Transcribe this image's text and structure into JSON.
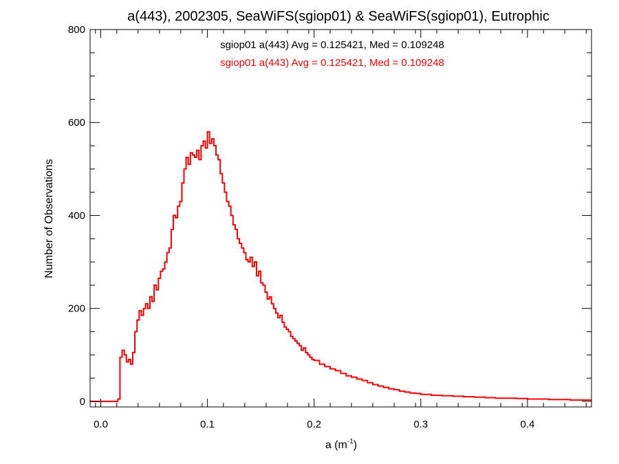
{
  "chart_data": {
    "type": "histogram",
    "title": "a(443), 2002305, SeaWiFS(sgiop01) & SeaWiFS(sgiop01), Eutrophic",
    "xlabel_main": "a (m",
    "xlabel_sup": "-1",
    "xlabel_close": ")",
    "ylabel": "Number of Observations",
    "xlim": [
      -0.01,
      0.46
    ],
    "ylim": [
      -12,
      800
    ],
    "xticks": [
      0.0,
      0.1,
      0.2,
      0.3,
      0.4
    ],
    "xtick_labels": [
      "0.0",
      "0.1",
      "0.2",
      "0.3",
      "0.4"
    ],
    "yticks": [
      0,
      200,
      400,
      600,
      800
    ],
    "ytick_labels": [
      "0",
      "200",
      "400",
      "600",
      "800"
    ],
    "colors": {
      "series1": "#000000",
      "series2": "#ff0000",
      "axes": "#000000"
    },
    "annotations": [
      {
        "text": "sgiop01 a(443) Avg = 0.125421, Med = 0.109248",
        "color": "#000000"
      },
      {
        "text": "sgiop01 a(443) Avg = 0.125421, Med = 0.109248",
        "color": "#ff0000"
      }
    ],
    "series": [
      {
        "name": "sgiop01",
        "color": "#000000",
        "x": [
          -0.01,
          0.016,
          0.018,
          0.02,
          0.022,
          0.024,
          0.026,
          0.028,
          0.03,
          0.032,
          0.034,
          0.036,
          0.038,
          0.04,
          0.042,
          0.044,
          0.046,
          0.048,
          0.05,
          0.052,
          0.054,
          0.056,
          0.058,
          0.06,
          0.062,
          0.064,
          0.066,
          0.068,
          0.07,
          0.072,
          0.074,
          0.076,
          0.078,
          0.08,
          0.082,
          0.084,
          0.086,
          0.088,
          0.09,
          0.092,
          0.094,
          0.096,
          0.098,
          0.1,
          0.102,
          0.104,
          0.106,
          0.108,
          0.11,
          0.112,
          0.114,
          0.116,
          0.118,
          0.12,
          0.122,
          0.124,
          0.126,
          0.128,
          0.13,
          0.132,
          0.134,
          0.136,
          0.138,
          0.14,
          0.142,
          0.144,
          0.146,
          0.148,
          0.15,
          0.152,
          0.154,
          0.156,
          0.158,
          0.16,
          0.162,
          0.164,
          0.166,
          0.168,
          0.17,
          0.172,
          0.174,
          0.176,
          0.178,
          0.18,
          0.182,
          0.184,
          0.186,
          0.188,
          0.19,
          0.192,
          0.194,
          0.196,
          0.198,
          0.2,
          0.205,
          0.21,
          0.215,
          0.22,
          0.225,
          0.23,
          0.235,
          0.24,
          0.245,
          0.25,
          0.255,
          0.26,
          0.265,
          0.27,
          0.275,
          0.28,
          0.285,
          0.29,
          0.295,
          0.3,
          0.31,
          0.32,
          0.33,
          0.34,
          0.35,
          0.36,
          0.37,
          0.38,
          0.39,
          0.4,
          0.41,
          0.42,
          0.43,
          0.44,
          0.45
        ],
        "y": [
          0,
          5,
          95,
          110,
          100,
          85,
          90,
          80,
          105,
          150,
          175,
          195,
          185,
          200,
          210,
          200,
          225,
          215,
          250,
          240,
          265,
          280,
          285,
          300,
          320,
          330,
          370,
          400,
          395,
          420,
          430,
          470,
          500,
          525,
          510,
          535,
          530,
          525,
          540,
          520,
          550,
          560,
          545,
          580,
          555,
          565,
          550,
          530,
          520,
          490,
          470,
          450,
          430,
          420,
          400,
          380,
          370,
          350,
          340,
          330,
          320,
          305,
          300,
          310,
          290,
          300,
          270,
          280,
          255,
          250,
          235,
          220,
          225,
          210,
          200,
          190,
          180,
          185,
          170,
          160,
          155,
          150,
          140,
          135,
          130,
          125,
          120,
          110,
          115,
          105,
          100,
          95,
          90,
          88,
          80,
          75,
          70,
          66,
          60,
          55,
          52,
          48,
          45,
          40,
          36,
          33,
          30,
          27,
          25,
          22,
          20,
          18,
          17,
          15,
          13,
          12,
          11,
          10,
          9,
          8,
          7,
          7,
          6,
          5,
          5,
          4,
          4,
          3,
          3
        ]
      },
      {
        "name": "sgiop01",
        "color": "#ff0000",
        "x": [
          -0.01,
          0.016,
          0.018,
          0.02,
          0.022,
          0.024,
          0.026,
          0.028,
          0.03,
          0.032,
          0.034,
          0.036,
          0.038,
          0.04,
          0.042,
          0.044,
          0.046,
          0.048,
          0.05,
          0.052,
          0.054,
          0.056,
          0.058,
          0.06,
          0.062,
          0.064,
          0.066,
          0.068,
          0.07,
          0.072,
          0.074,
          0.076,
          0.078,
          0.08,
          0.082,
          0.084,
          0.086,
          0.088,
          0.09,
          0.092,
          0.094,
          0.096,
          0.098,
          0.1,
          0.102,
          0.104,
          0.106,
          0.108,
          0.11,
          0.112,
          0.114,
          0.116,
          0.118,
          0.12,
          0.122,
          0.124,
          0.126,
          0.128,
          0.13,
          0.132,
          0.134,
          0.136,
          0.138,
          0.14,
          0.142,
          0.144,
          0.146,
          0.148,
          0.15,
          0.152,
          0.154,
          0.156,
          0.158,
          0.16,
          0.162,
          0.164,
          0.166,
          0.168,
          0.17,
          0.172,
          0.174,
          0.176,
          0.178,
          0.18,
          0.182,
          0.184,
          0.186,
          0.188,
          0.19,
          0.192,
          0.194,
          0.196,
          0.198,
          0.2,
          0.205,
          0.21,
          0.215,
          0.22,
          0.225,
          0.23,
          0.235,
          0.24,
          0.245,
          0.25,
          0.255,
          0.26,
          0.265,
          0.27,
          0.275,
          0.28,
          0.285,
          0.29,
          0.295,
          0.3,
          0.31,
          0.32,
          0.33,
          0.34,
          0.35,
          0.36,
          0.37,
          0.38,
          0.39,
          0.4,
          0.41,
          0.42,
          0.43,
          0.44,
          0.45
        ],
        "y": [
          0,
          5,
          95,
          110,
          100,
          85,
          90,
          80,
          105,
          150,
          175,
          195,
          185,
          200,
          210,
          200,
          225,
          215,
          250,
          240,
          265,
          280,
          285,
          300,
          320,
          330,
          370,
          400,
          395,
          420,
          430,
          470,
          500,
          525,
          510,
          535,
          530,
          525,
          540,
          520,
          550,
          560,
          545,
          580,
          555,
          565,
          550,
          530,
          520,
          490,
          470,
          450,
          430,
          420,
          400,
          380,
          370,
          350,
          340,
          330,
          320,
          305,
          300,
          310,
          290,
          300,
          270,
          280,
          255,
          250,
          235,
          220,
          225,
          210,
          200,
          190,
          180,
          185,
          170,
          160,
          155,
          150,
          140,
          135,
          130,
          125,
          120,
          110,
          115,
          105,
          100,
          95,
          90,
          88,
          80,
          75,
          70,
          66,
          60,
          55,
          52,
          48,
          45,
          40,
          36,
          33,
          30,
          27,
          25,
          22,
          20,
          18,
          17,
          15,
          13,
          12,
          11,
          10,
          9,
          8,
          7,
          7,
          6,
          5,
          5,
          4,
          4,
          3,
          3
        ]
      }
    ]
  }
}
